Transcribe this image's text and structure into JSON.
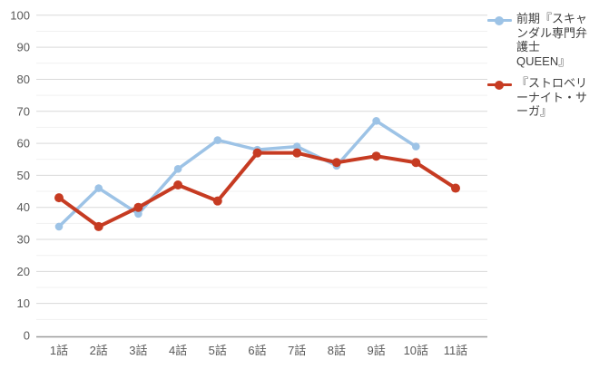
{
  "chart_data": {
    "type": "line",
    "title": "",
    "xlabel": "",
    "ylabel": "",
    "categories": [
      "1話",
      "2話",
      "3話",
      "4話",
      "5話",
      "6話",
      "7話",
      "8話",
      "9話",
      "10話",
      "11話"
    ],
    "series": [
      {
        "name": "前期『スキャンダル専門弁護士QUEEN』",
        "label_lines": [
          "前期『スキャ",
          "ンダル専門弁",
          "護士",
          "QUEEN』"
        ],
        "color": "#9dc3e6",
        "line_width": 3.5,
        "dot_radius": 4.3,
        "values": [
          34,
          46,
          38,
          52,
          61,
          58,
          59,
          53,
          67,
          59,
          null
        ]
      },
      {
        "name": "『ストロベリーナイト・サーガ』",
        "label_lines": [
          "『ストロベリ",
          "ーナイト・サ",
          "ーガ』"
        ],
        "color": "#c63b22",
        "line_width": 4,
        "dot_radius": 5,
        "values": [
          43,
          34,
          40,
          47,
          42,
          57,
          57,
          54,
          56,
          54,
          46
        ]
      }
    ],
    "ylim": [
      0,
      100
    ],
    "yticks": [
      0,
      10,
      20,
      30,
      40,
      50,
      60,
      70,
      80,
      90,
      100
    ],
    "y_minor_gridline_step": 5,
    "grid": true,
    "legend_position": "right",
    "colors": {
      "major_gridline": "#d9d9d9",
      "minor_gridline": "#f1f1f1",
      "axis_line": "#9b9b9b",
      "tick_label": "#595959",
      "legend_text": "#3f3f3f",
      "background": "#ffffff"
    }
  }
}
